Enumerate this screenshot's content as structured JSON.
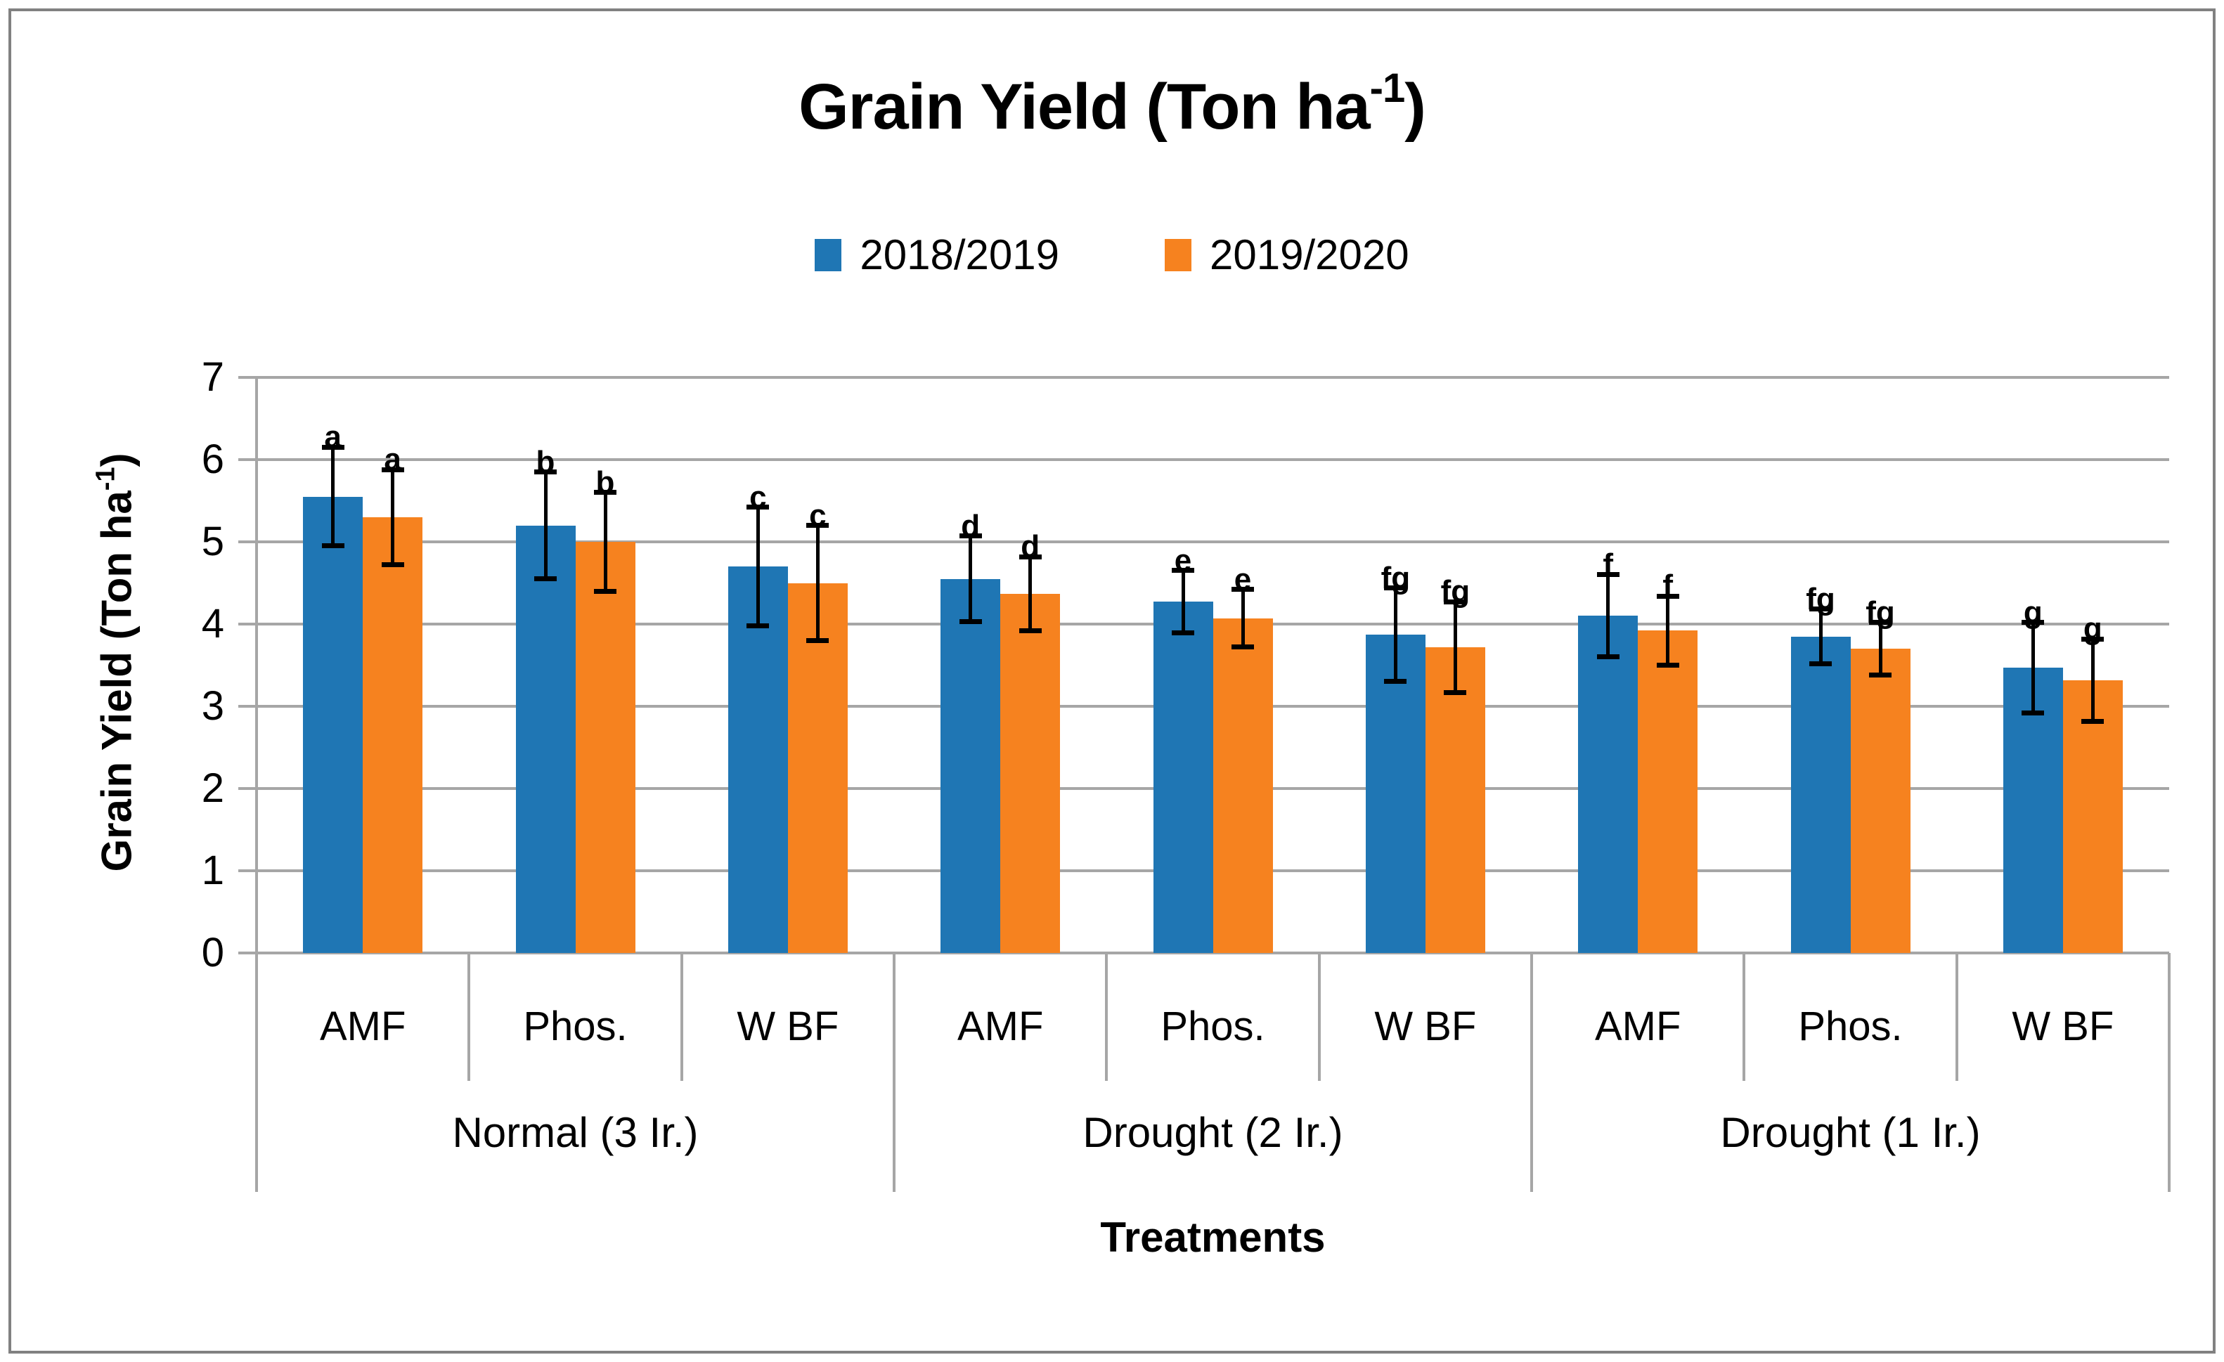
{
  "title": {
    "prefix": "Grain Yield (Ton ha",
    "sup": "-1",
    "suffix": ")"
  },
  "legend": [
    {
      "label": "2018/2019",
      "color": "#1f76b4"
    },
    {
      "label": "2019/2020",
      "color": "#f6821f"
    }
  ],
  "y_axis": {
    "title_prefix": "Grain Yield (Ton ha",
    "title_sup": "-1",
    "title_suffix": ")",
    "ticks": [
      0,
      1,
      2,
      3,
      4,
      5,
      6,
      7
    ]
  },
  "x_axis": {
    "title": "Treatments",
    "treatments": [
      "AMF",
      "Phos.",
      "W BF"
    ],
    "groups": [
      "Normal (3 Ir.)",
      "Drought (2 Ir.)",
      "Drought (1 Ir.)"
    ]
  },
  "colors": {
    "series1": "#1f76b4",
    "series2": "#f6821f",
    "gridline": "#a6a6a6",
    "error_bar": "#000000",
    "frame_border": "#818181",
    "text": "#000000"
  },
  "chart_data": {
    "type": "bar",
    "title": "Grain Yield (Ton ha-1)",
    "xlabel": "Treatments",
    "ylabel": "Grain Yield (Ton ha-1)",
    "ylim": [
      0,
      7
    ],
    "grid": true,
    "legend_position": "top",
    "group_labels": [
      "Normal (3 Ir.)",
      "Drought (2 Ir.)",
      "Drought (1 Ir.)"
    ],
    "categories": [
      "AMF",
      "Phos.",
      "W BF",
      "AMF",
      "Phos.",
      "W BF",
      "AMF",
      "Phos.",
      "W BF"
    ],
    "series": [
      {
        "name": "2018/2019",
        "color": "#1f76b4",
        "values": [
          5.55,
          5.2,
          4.7,
          4.55,
          4.27,
          3.87,
          4.1,
          3.85,
          3.47
        ],
        "errors": [
          0.6,
          0.65,
          0.72,
          0.52,
          0.38,
          0.57,
          0.5,
          0.33,
          0.55
        ],
        "sig_letters": [
          "a",
          "b",
          "c",
          "d",
          "e",
          "fg",
          "f",
          "fg",
          "g"
        ]
      },
      {
        "name": "2019/2020",
        "color": "#f6821f",
        "values": [
          5.3,
          5.0,
          4.5,
          4.37,
          4.07,
          3.72,
          3.92,
          3.7,
          3.32
        ],
        "errors": [
          0.58,
          0.6,
          0.7,
          0.45,
          0.35,
          0.55,
          0.42,
          0.32,
          0.5
        ],
        "sig_letters": [
          "a",
          "b",
          "c",
          "d",
          "e",
          "fg",
          "f",
          "fg",
          "g"
        ]
      }
    ]
  }
}
